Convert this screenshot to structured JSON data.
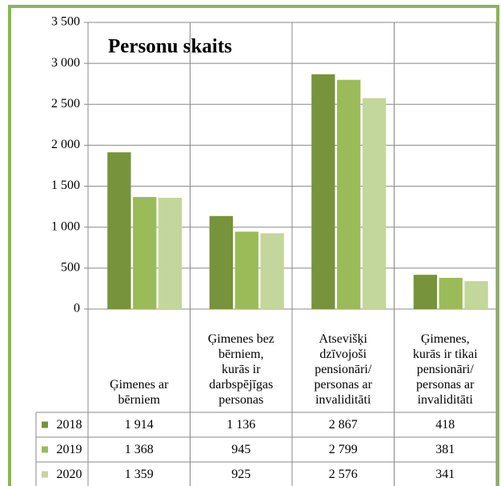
{
  "chart_data": {
    "type": "bar",
    "title": "Personu skaits",
    "categories": [
      "Ģimenes ar\nbērniem",
      "Ģimenes bez\nbērniem,\nkurās ir\ndarbspējīgas\npersonas",
      "Atsevišķi\ndzīvojoši\npensionāri/\npersonas ar\ninvaliditāti",
      "Ģimenes,\nkurās ir tikai\npensionāri/\npersonas ar\ninvaliditāti"
    ],
    "series": [
      {
        "name": "2018",
        "color": "#77933c",
        "values": [
          1914,
          1136,
          2867,
          418
        ],
        "value_labels": [
          "1 914",
          "1 136",
          "2 867",
          "418"
        ]
      },
      {
        "name": "2019",
        "color": "#9bbb59",
        "values": [
          1368,
          945,
          2799,
          381
        ],
        "value_labels": [
          "1 368",
          "945",
          "2 799",
          "381"
        ]
      },
      {
        "name": "2020",
        "color": "#c3d69b",
        "values": [
          1359,
          925,
          2576,
          341
        ],
        "value_labels": [
          "1 359",
          "925",
          "2 576",
          "341"
        ]
      }
    ],
    "ylim": [
      0,
      3500
    ],
    "yticks": [
      0,
      500,
      {
        "value": 1000,
        "label": "1 000"
      },
      {
        "value": 1500,
        "label": "1 500"
      },
      {
        "value": 2000,
        "label": "2 000"
      },
      {
        "value": 2500,
        "label": "2 500"
      },
      {
        "value": 3000,
        "label": "3 000"
      },
      {
        "value": 3500,
        "label": "3 500"
      }
    ],
    "grid": true
  }
}
